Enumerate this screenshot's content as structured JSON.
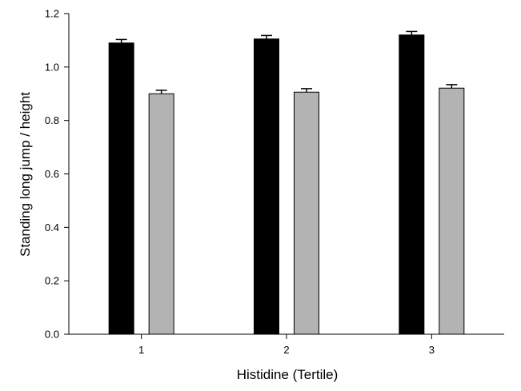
{
  "chart_data": {
    "type": "bar",
    "title": "",
    "xlabel": "Histidine (Tertile)",
    "ylabel": "Standing long jump / height",
    "categories": [
      "1",
      "2",
      "3"
    ],
    "ylim": [
      0,
      1.2
    ],
    "yticks": [
      "0.0",
      "0.2",
      "0.4",
      "0.6",
      "0.8",
      "1.0",
      "1.2"
    ],
    "grid": false,
    "legend": "none",
    "error_bars": true,
    "series": [
      {
        "color": "#000000",
        "values": [
          1.09,
          1.105,
          1.12
        ],
        "errors": [
          0.013,
          0.013,
          0.013
        ]
      },
      {
        "color": "#b3b3b3",
        "values": [
          0.9,
          0.906,
          0.921
        ],
        "errors": [
          0.013,
          0.013,
          0.013
        ]
      }
    ]
  }
}
